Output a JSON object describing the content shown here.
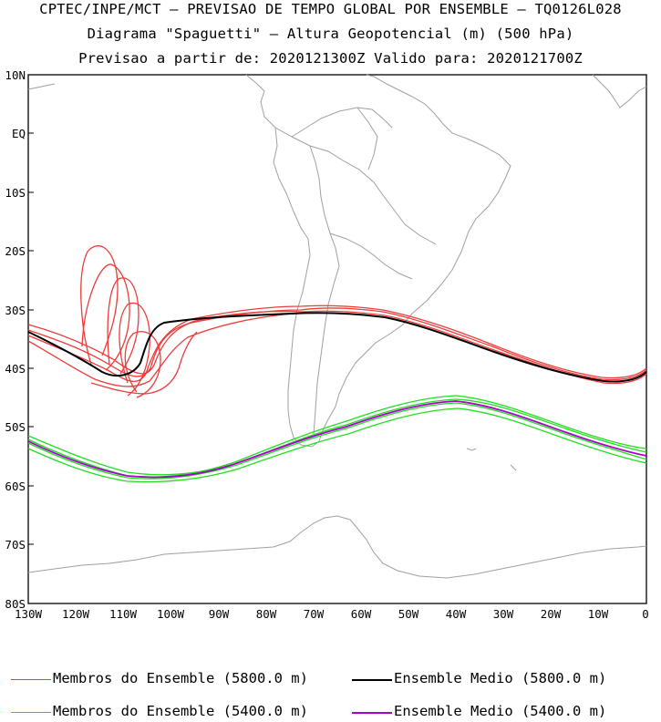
{
  "title_line1": "CPTEC/INPE/MCT – PREVISAO DE TEMPO GLOBAL POR ENSEMBLE – TQ0126L028",
  "title_line2": "Diagrama \"Spaguetti\" – Altura Geopotencial (m) (500 hPa)",
  "title_line3": "Previsao a partir de: 2020121300Z  Valido para: 2020121700Z",
  "lat_labels": [
    "10N",
    "EQ",
    "10S",
    "20S",
    "30S",
    "40S",
    "50S",
    "60S",
    "70S",
    "80S"
  ],
  "lon_labels": [
    "130W",
    "120W",
    "110W",
    "100W",
    "90W",
    "80W",
    "70W",
    "60W",
    "50W",
    "40W",
    "30W",
    "20W",
    "10W",
    "0"
  ],
  "legend": {
    "members_5800": "Membros do Ensemble (5800.0 m)",
    "mean_5800": "Ensemble Medio (5800.0 m)",
    "members_5400": "Membros do Ensemble (5400.0 m)",
    "mean_5400": "Ensemble Medio (5400.0 m)"
  },
  "colors": {
    "members_5800": "#ee3b3b",
    "mean_5800": "#000000",
    "members_5400": "#22dd22",
    "mean_5400": "#aa00cc",
    "coast": "#a0a0a0"
  }
}
